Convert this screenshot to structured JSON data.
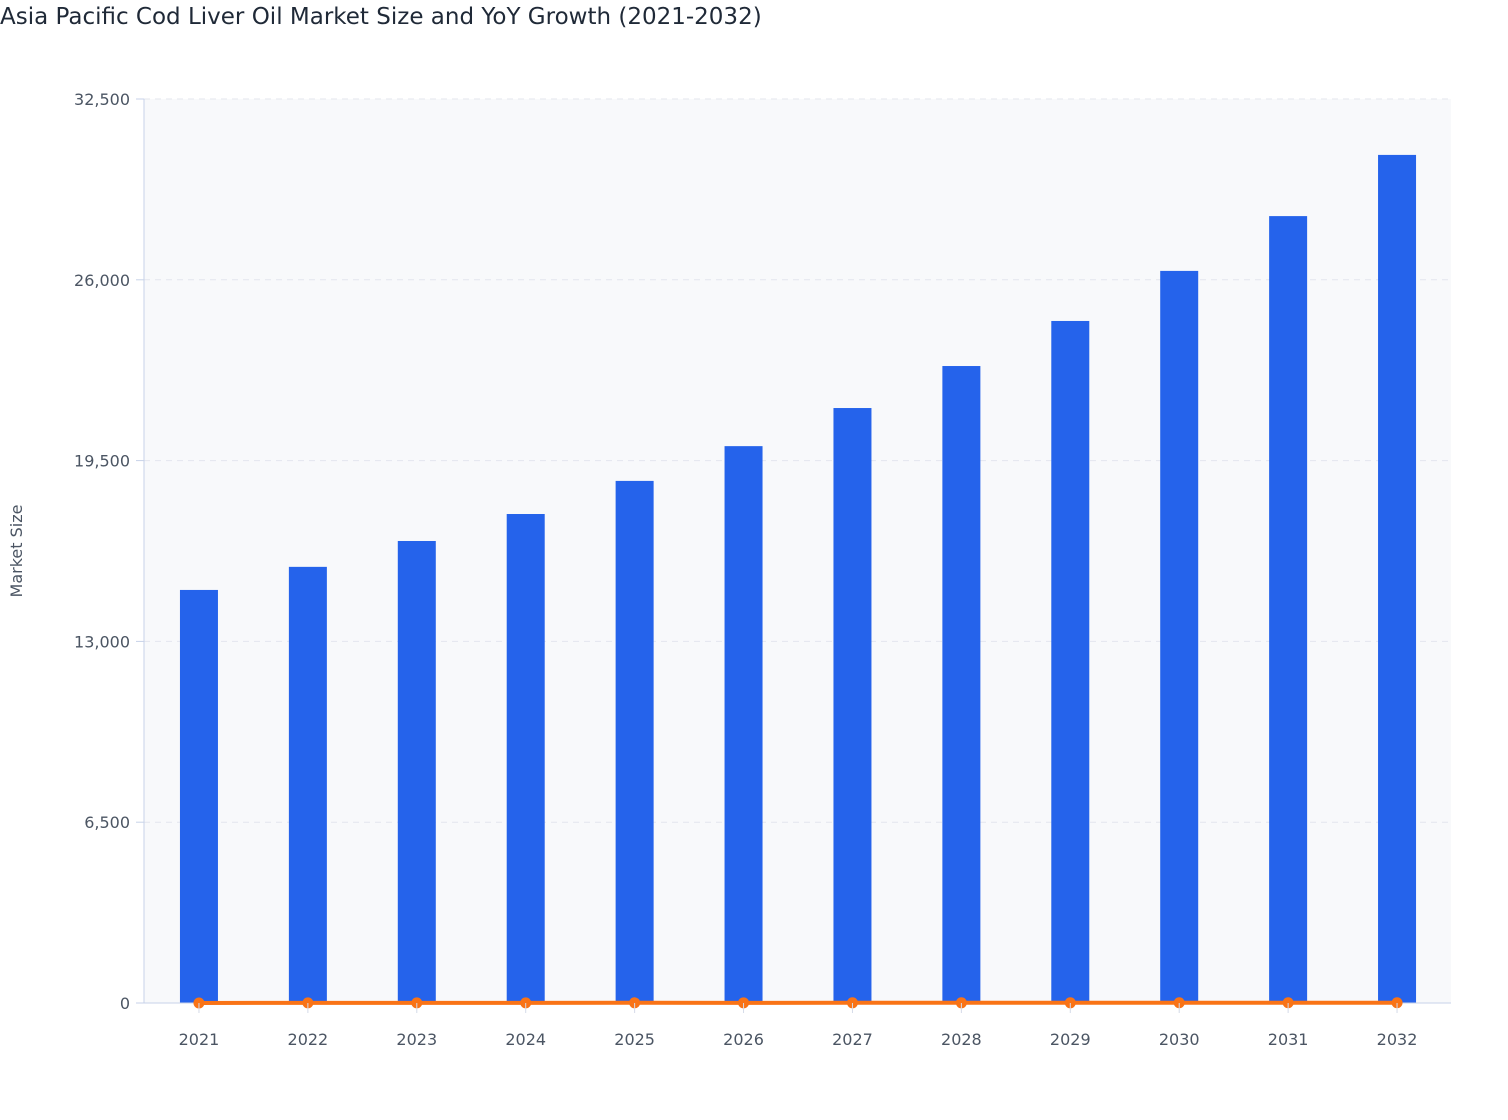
{
  "chart_data": {
    "type": "bar",
    "title": "Asia Pacific Cod Liver Oil Market Size and YoY Growth (2021-2032)",
    "xlabel": "",
    "ylabel": "Market Size",
    "ylim": [
      0,
      32500
    ],
    "yticks": [
      "0",
      "6,500",
      "13,000",
      "19,500",
      "26,000",
      "32,500"
    ],
    "ytick_values": [
      0,
      6500,
      13000,
      19500,
      26000,
      32500
    ],
    "grid": true,
    "categories": [
      "2021",
      "2022",
      "2023",
      "2024",
      "2025",
      "2026",
      "2027",
      "2028",
      "2029",
      "2030",
      "2031",
      "2032"
    ],
    "series": [
      {
        "type": "bar",
        "color": "#2563eb",
        "values": [
          14850,
          15680,
          16610,
          17580,
          18770,
          20020,
          21390,
          22900,
          24520,
          26320,
          28290,
          30490
        ]
      },
      {
        "type": "line",
        "color": "#f97316",
        "values": [
          0,
          5.6,
          5.9,
          5.8,
          6.8,
          6.7,
          6.8,
          7.1,
          7.1,
          7.3,
          7.5,
          7.8
        ]
      }
    ]
  }
}
